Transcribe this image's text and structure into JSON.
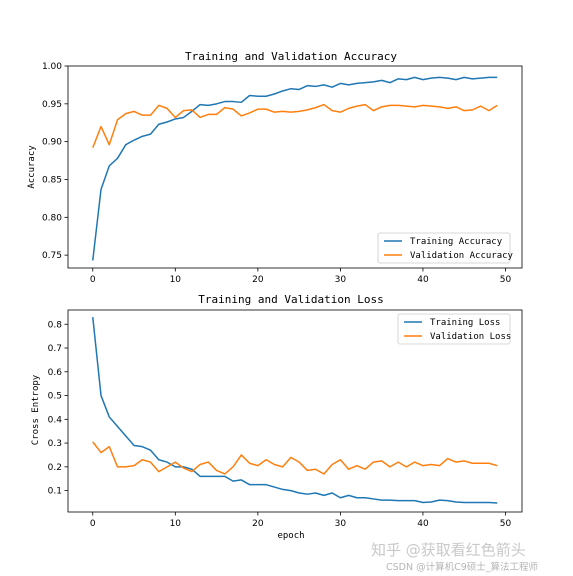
{
  "chart_data": [
    {
      "type": "line",
      "title": "Training and Validation Accuracy",
      "xlabel": "",
      "ylabel": "Accuracy",
      "xlim": [
        -3,
        52
      ],
      "ylim": [
        0.733,
        1.0
      ],
      "xticks": [
        0,
        10,
        20,
        30,
        40,
        50
      ],
      "yticks": [
        0.75,
        0.8,
        0.85,
        0.9,
        0.95,
        1.0
      ],
      "ytick_labels": [
        "0.75",
        "0.80",
        "0.85",
        "0.90",
        "0.95",
        "1.00"
      ],
      "legend_position": "lower-right",
      "grid": false,
      "series": [
        {
          "name": "Training Accuracy",
          "color": "#1f77b4",
          "values": [
            0.743,
            0.837,
            0.868,
            0.878,
            0.896,
            0.902,
            0.907,
            0.91,
            0.923,
            0.926,
            0.93,
            0.932,
            0.94,
            0.949,
            0.948,
            0.95,
            0.953,
            0.953,
            0.952,
            0.961,
            0.96,
            0.96,
            0.963,
            0.967,
            0.97,
            0.969,
            0.974,
            0.973,
            0.975,
            0.972,
            0.977,
            0.975,
            0.977,
            0.978,
            0.979,
            0.981,
            0.978,
            0.983,
            0.982,
            0.985,
            0.982,
            0.984,
            0.985,
            0.984,
            0.982,
            0.985,
            0.983,
            0.984,
            0.985,
            0.985
          ]
        },
        {
          "name": "Validation Accuracy",
          "color": "#ff7f0e",
          "values": [
            0.892,
            0.92,
            0.896,
            0.929,
            0.937,
            0.94,
            0.935,
            0.935,
            0.948,
            0.944,
            0.932,
            0.941,
            0.942,
            0.932,
            0.936,
            0.936,
            0.945,
            0.943,
            0.934,
            0.938,
            0.943,
            0.943,
            0.939,
            0.94,
            0.939,
            0.94,
            0.942,
            0.945,
            0.949,
            0.941,
            0.939,
            0.944,
            0.947,
            0.949,
            0.941,
            0.946,
            0.948,
            0.948,
            0.947,
            0.946,
            0.948,
            0.947,
            0.946,
            0.944,
            0.946,
            0.941,
            0.942,
            0.947,
            0.941,
            0.948
          ]
        }
      ]
    },
    {
      "type": "line",
      "title": "Training and Validation Loss",
      "xlabel": "epoch",
      "ylabel": "Cross Entropy",
      "xlim": [
        -3,
        52
      ],
      "ylim": [
        0.01,
        0.86
      ],
      "xticks": [
        0,
        10,
        20,
        30,
        40,
        50
      ],
      "yticks": [
        0.1,
        0.2,
        0.3,
        0.4,
        0.5,
        0.6,
        0.7,
        0.8
      ],
      "ytick_labels": [
        "0.1",
        "0.2",
        "0.3",
        "0.4",
        "0.5",
        "0.6",
        "0.7",
        "0.8"
      ],
      "legend_position": "upper-right",
      "grid": false,
      "series": [
        {
          "name": "Training Loss",
          "color": "#1f77b4",
          "values": [
            0.83,
            0.5,
            0.41,
            0.37,
            0.33,
            0.29,
            0.285,
            0.27,
            0.23,
            0.22,
            0.2,
            0.2,
            0.19,
            0.16,
            0.16,
            0.16,
            0.16,
            0.14,
            0.145,
            0.125,
            0.125,
            0.125,
            0.115,
            0.105,
            0.1,
            0.09,
            0.085,
            0.09,
            0.08,
            0.09,
            0.07,
            0.08,
            0.07,
            0.07,
            0.065,
            0.06,
            0.06,
            0.058,
            0.058,
            0.058,
            0.05,
            0.052,
            0.06,
            0.058,
            0.052,
            0.05,
            0.05,
            0.05,
            0.05,
            0.048
          ]
        },
        {
          "name": "Validation Loss",
          "color": "#ff7f0e",
          "values": [
            0.305,
            0.26,
            0.285,
            0.2,
            0.2,
            0.205,
            0.23,
            0.22,
            0.18,
            0.2,
            0.22,
            0.195,
            0.18,
            0.21,
            0.22,
            0.185,
            0.17,
            0.2,
            0.25,
            0.215,
            0.205,
            0.23,
            0.21,
            0.2,
            0.24,
            0.22,
            0.185,
            0.19,
            0.17,
            0.21,
            0.23,
            0.19,
            0.205,
            0.19,
            0.22,
            0.225,
            0.2,
            0.22,
            0.2,
            0.22,
            0.205,
            0.21,
            0.205,
            0.235,
            0.22,
            0.225,
            0.215,
            0.215,
            0.215,
            0.205
          ]
        }
      ]
    }
  ],
  "watermark": {
    "main": "知乎 @获取看红色箭头",
    "credit": "CSDN @计算机C9硕士_算法工程师"
  }
}
